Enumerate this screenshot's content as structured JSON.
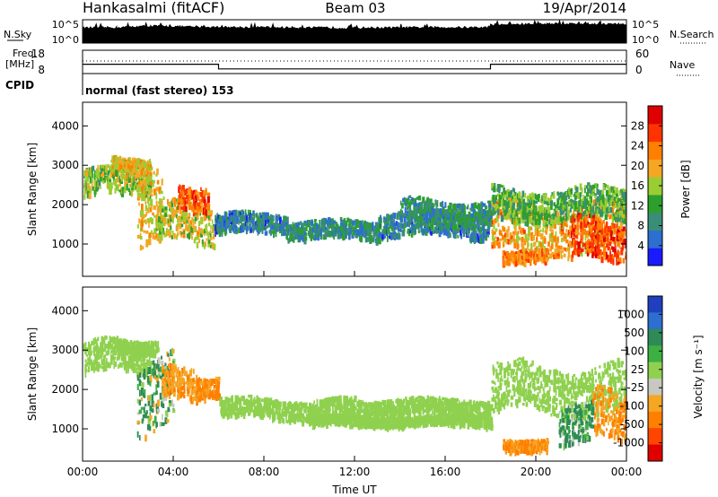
{
  "header": {
    "station": "Hankasalmi (fitACF)",
    "beam": "Beam 03",
    "date": "19/Apr/2014",
    "cpid_text": "normal (fast stereo) 153"
  },
  "noise_panel": {
    "left_label": "N.Sky",
    "right_label": "N.Search",
    "tick_labels": [
      "10^5",
      "10^0"
    ],
    "sky_level_log": [
      [
        0,
        3.2
      ],
      [
        1.5,
        3.3
      ],
      [
        3,
        3.6
      ],
      [
        5,
        3.4
      ],
      [
        8,
        3.3
      ],
      [
        12,
        3.2
      ],
      [
        16,
        3.3
      ],
      [
        17.9,
        3.3
      ],
      [
        18,
        3.9
      ],
      [
        21,
        4.1
      ],
      [
        24,
        4.0
      ]
    ],
    "search_level_log": 0.5
  },
  "freq_panel": {
    "left_label_top": "Freq.",
    "left_label_unit": "[MHz]",
    "left_ticks": [
      "18",
      "8"
    ],
    "right_ticks": [
      "60",
      "0"
    ],
    "right_label": "Nave",
    "cpid_label": "CPID",
    "freq_mhz": [
      [
        0,
        12
      ],
      [
        6,
        12
      ],
      [
        6,
        10
      ],
      [
        18,
        10
      ],
      [
        18,
        12
      ],
      [
        24,
        12
      ]
    ]
  },
  "chart_data": [
    {
      "type": "heatmap",
      "name": "power",
      "xlabel": "",
      "ylabel": "Slant Range [km]",
      "xlim": [
        0,
        24
      ],
      "ylim": [
        180,
        4600
      ],
      "yticks": [
        "1000",
        "2000",
        "3000",
        "4000"
      ],
      "colorbar_label": "Power [dB]",
      "colorbar_ticks": [
        "4",
        "8",
        "12",
        "16",
        "20",
        "24",
        "28"
      ],
      "colorbar_colors": [
        "#1a1aff",
        "#2d6fd0",
        "#3a8e78",
        "#2ca02c",
        "#9acd32",
        "#f5a623",
        "#ff7f00",
        "#ff3300",
        "#e00000"
      ],
      "bands_x_hours_y_km_db": [
        [
          0.0,
          3.0,
          2550,
          350,
          14
        ],
        [
          1.2,
          3.0,
          3000,
          200,
          18
        ],
        [
          2.4,
          3.5,
          2000,
          900,
          18
        ],
        [
          3.2,
          5.8,
          1500,
          500,
          16
        ],
        [
          4.2,
          5.5,
          2200,
          300,
          24
        ],
        [
          5.8,
          9.0,
          1500,
          250,
          6
        ],
        [
          9.0,
          13.0,
          1350,
          220,
          8
        ],
        [
          13.0,
          17.9,
          1500,
          300,
          6
        ],
        [
          14.0,
          18.0,
          1800,
          300,
          8
        ],
        [
          18.0,
          24.0,
          1400,
          600,
          20
        ],
        [
          18.0,
          24.0,
          2000,
          400,
          12
        ],
        [
          21.5,
          24.0,
          1100,
          500,
          26
        ],
        [
          18.5,
          20.5,
          700,
          150,
          22
        ]
      ]
    },
    {
      "type": "heatmap",
      "name": "velocity",
      "xlabel": "Time UT",
      "ylabel": "Slant Range [km]",
      "xlim": [
        0,
        24
      ],
      "ylim": [
        180,
        4600
      ],
      "xticks": [
        "00:00",
        "04:00",
        "08:00",
        "12:00",
        "16:00",
        "20:00",
        "00:00"
      ],
      "yticks": [
        "1000",
        "2000",
        "3000",
        "4000"
      ],
      "colorbar_label": "Velocity [m s⁻¹]",
      "colorbar_ticks": [
        "1000",
        "500",
        "100",
        "25",
        "-25",
        "-100",
        "-500",
        "-1000"
      ],
      "colorbar_colors": [
        "#1f3fbf",
        "#2d6fd0",
        "#2e8b57",
        "#3cb043",
        "#8fd14f",
        "#c8c8c0",
        "#f5a623",
        "#ff7f00",
        "#ff4500",
        "#e00000"
      ],
      "bands_x_hours_y_km_ms": [
        [
          0.0,
          3.0,
          2800,
          400,
          0
        ],
        [
          1.5,
          3.3,
          3100,
          150,
          0
        ],
        [
          2.4,
          4.0,
          1900,
          900,
          120
        ],
        [
          3.5,
          5.0,
          2100,
          400,
          -400
        ],
        [
          5.0,
          6.0,
          2100,
          250,
          -600
        ],
        [
          6.0,
          12.0,
          1500,
          250,
          0
        ],
        [
          10.0,
          18.0,
          1200,
          120,
          0
        ],
        [
          12.0,
          18.0,
          1550,
          200,
          0
        ],
        [
          18.0,
          24.0,
          2000,
          600,
          0
        ],
        [
          21.0,
          22.5,
          1200,
          500,
          200
        ],
        [
          22.5,
          24.0,
          1300,
          600,
          -500
        ],
        [
          18.5,
          20.5,
          600,
          150,
          -500
        ]
      ]
    }
  ]
}
